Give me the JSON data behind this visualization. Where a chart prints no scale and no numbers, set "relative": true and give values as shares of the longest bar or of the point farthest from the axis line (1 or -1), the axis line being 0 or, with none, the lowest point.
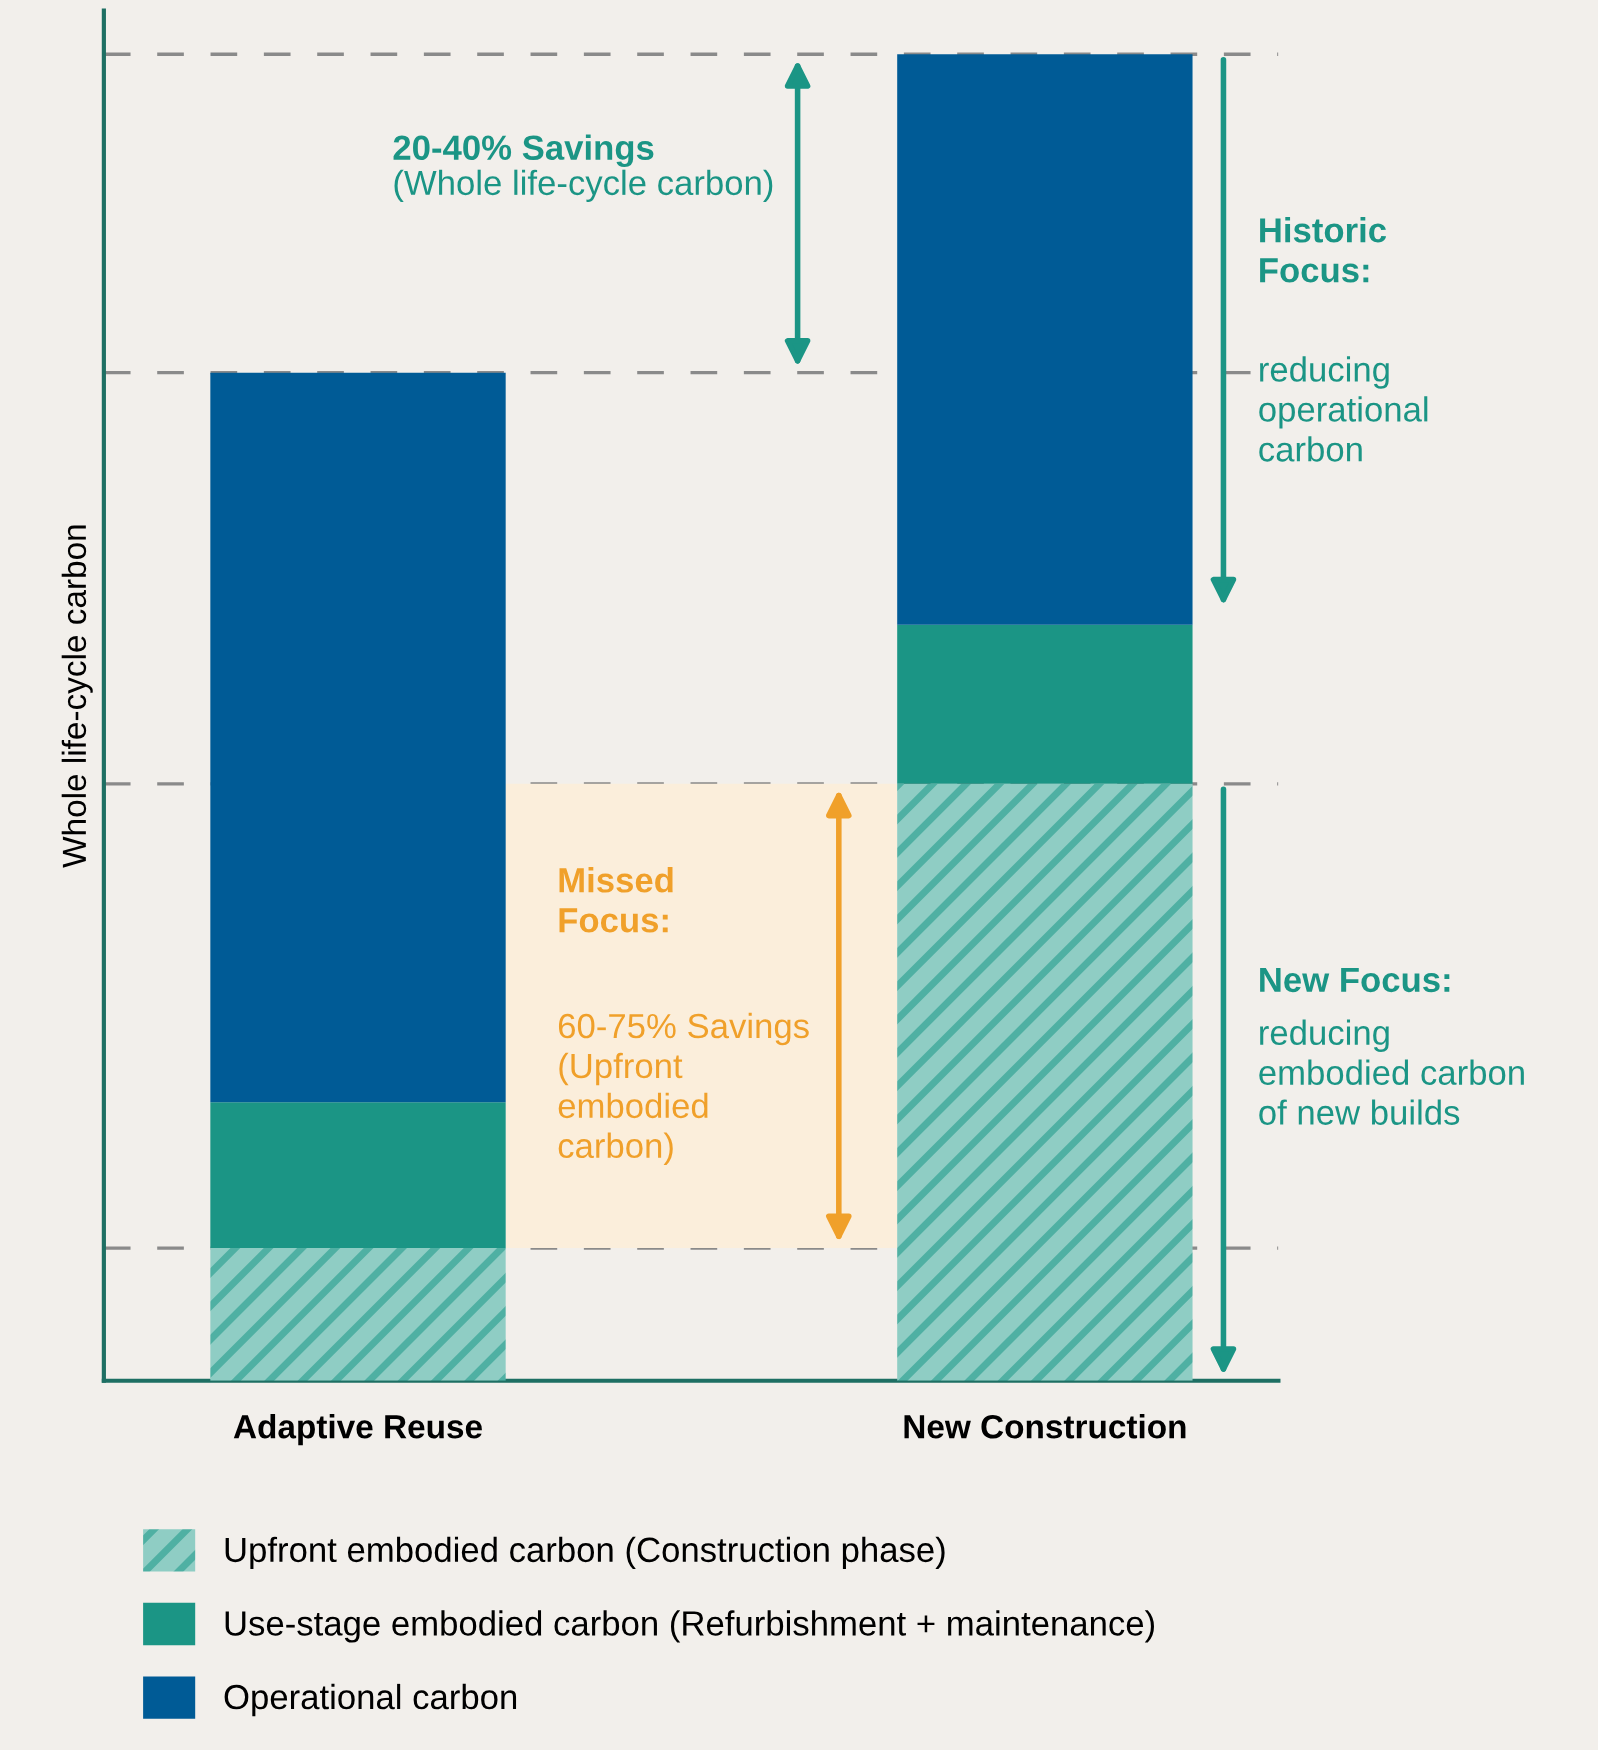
{
  "chart_data": {
    "type": "bar",
    "stacked": true,
    "relative": true,
    "ylabel": "Whole life-cycle carbon",
    "categories": [
      "Adaptive Reuse",
      "New Construction"
    ],
    "series": [
      {
        "name": "Upfront embodied carbon (Construction phase)",
        "color": "#4fb0a3",
        "values": [
          0.1,
          0.45
        ]
      },
      {
        "name": "Use-stage embodied carbon (Refurbishment + maintenance)",
        "color": "#1b9585",
        "values": [
          0.11,
          0.12
        ]
      },
      {
        "name": "Operational carbon",
        "color": "#005b96",
        "values": [
          0.55,
          0.43
        ]
      }
    ],
    "ref_lines": [
      {
        "axis": "y",
        "value": 1.0,
        "color": "#8a8a8a",
        "line_style": "dashed"
      },
      {
        "axis": "y",
        "value": 0.76,
        "color": "#8a8a8a",
        "line_style": "dashed"
      },
      {
        "axis": "y",
        "value": 0.45,
        "color": "#8a8a8a",
        "line_style": "dashed"
      },
      {
        "axis": "y",
        "value": 0.1,
        "color": "#8a8a8a",
        "line_style": "dashed"
      }
    ],
    "bands": [
      {
        "axis": "y",
        "from": 0.1,
        "to": 0.45,
        "color": "#fbeedb"
      }
    ],
    "annotations": [
      "20-40% Savings",
      "(Whole life-cycle carbon)",
      "Historic\nFocus:",
      "reducing\noperational\ncarbon",
      "Missed\nFocus:",
      "60-75% Savings\n(Upfront\nembodied\ncarbon)",
      "New Focus:",
      "reducing\nembodied carbon\nof new builds"
    ],
    "legend": "bottom",
    "grid": false
  }
}
